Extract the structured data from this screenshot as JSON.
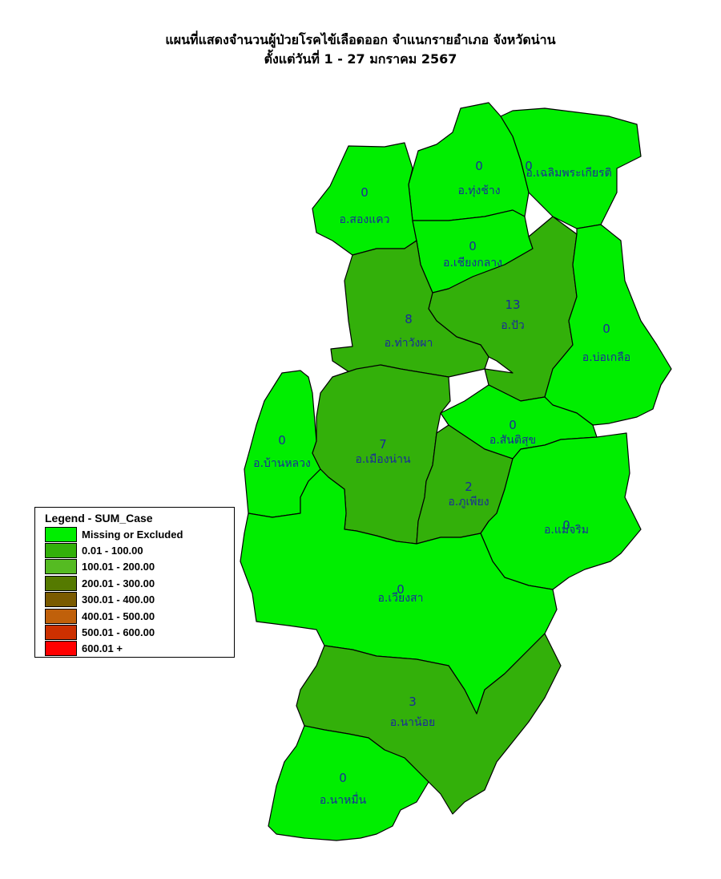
{
  "title": {
    "line1": "แผนที่แสดงจำนวนผู้ป่วยโรคไข้เลือดออก จำแนกรายอำเภอ จังหวัดน่าน",
    "line2": "ตั้งแต่วันที่ 1  - 27 มกราคม 2567"
  },
  "colors": {
    "missing": "#00ee00",
    "class_1": "#33b00a",
    "outline": "#000000",
    "label_text": "#1a2a9a"
  },
  "legend": {
    "title": "Legend - SUM_Case",
    "items": [
      {
        "label": "Missing or Excluded",
        "color": "#00ee00"
      },
      {
        "label": "0.01 - 100.00",
        "color": "#33b00a"
      },
      {
        "label": "100.01 - 200.00",
        "color": "#55bb22"
      },
      {
        "label": "200.01 - 300.00",
        "color": "#557a00"
      },
      {
        "label": "300.01 - 400.00",
        "color": "#7a5a00"
      },
      {
        "label": "400.01 - 500.00",
        "color": "#c0600a"
      },
      {
        "label": "500.01 - 600.00",
        "color": "#cc3000"
      },
      {
        "label": "600.01 +",
        "color": "#ff0000"
      }
    ]
  },
  "districts": [
    {
      "name": "อ.ทุ่งช้าง",
      "count": "0",
      "color": "#00ee00"
    },
    {
      "name": "อ.เฉลิมพระเกียรติ",
      "count": "0",
      "color": "#00ee00"
    },
    {
      "name": "อ.สองแคว",
      "count": "0",
      "color": "#00ee00"
    },
    {
      "name": "อ.เชียงกลาง",
      "count": "0",
      "color": "#00ee00"
    },
    {
      "name": "อ.ปัว",
      "count": "13",
      "color": "#33b00a"
    },
    {
      "name": "อ.ท่าวังผา",
      "count": "8",
      "color": "#33b00a"
    },
    {
      "name": "อ.บ่อเกลือ",
      "count": "0",
      "color": "#00ee00"
    },
    {
      "name": "อ.สันติสุข",
      "count": "0",
      "color": "#00ee00"
    },
    {
      "name": "อ.บ้านหลวง",
      "count": "0",
      "color": "#00ee00"
    },
    {
      "name": "อ.เมืองน่าน",
      "count": "7",
      "color": "#33b00a"
    },
    {
      "name": "อ.ภูเพียง",
      "count": "2",
      "color": "#33b00a"
    },
    {
      "name": "อ.แม่จริม",
      "count": "0",
      "color": "#00ee00"
    },
    {
      "name": "อ.เวียงสา",
      "count": "0",
      "color": "#00ee00"
    },
    {
      "name": "อ.นาน้อย",
      "count": "3",
      "color": "#33b00a"
    },
    {
      "name": "อ.นาหมื่น",
      "count": "0",
      "color": "#00ee00"
    }
  ]
}
